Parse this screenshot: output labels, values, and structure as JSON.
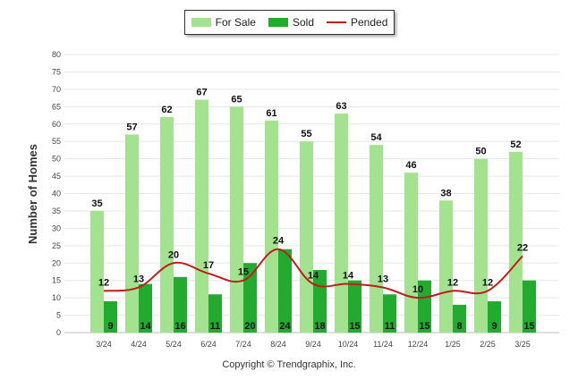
{
  "legend": {
    "for_sale": "For Sale",
    "sold": "Sold",
    "pended": "Pended"
  },
  "copyright": "Copyright © Trendgraphix, Inc.",
  "colors": {
    "for_sale": "#a3e28f",
    "sold": "#22ab2f",
    "pended": "#c21b1b",
    "grid": "#e6e6e6"
  },
  "chart_data": {
    "type": "bar",
    "categories": [
      "3/24",
      "4/24",
      "5/24",
      "6/24",
      "7/24",
      "8/24",
      "9/24",
      "10/24",
      "11/24",
      "12/24",
      "1/25",
      "2/25",
      "3/25"
    ],
    "series": [
      {
        "name": "For Sale",
        "type": "bar",
        "values": [
          35,
          57,
          62,
          67,
          65,
          61,
          55,
          63,
          54,
          46,
          38,
          50,
          52
        ]
      },
      {
        "name": "Sold",
        "type": "bar",
        "values": [
          9,
          14,
          16,
          11,
          20,
          24,
          18,
          15,
          11,
          15,
          8,
          9,
          15
        ]
      },
      {
        "name": "Pended",
        "type": "line",
        "values": [
          12,
          13,
          20,
          17,
          15,
          24,
          14,
          14,
          13,
          10,
          12,
          12,
          22
        ]
      }
    ],
    "xlabel": "",
    "ylabel": "Number of Homes",
    "ylim": [
      0,
      80
    ],
    "yticks": [
      0,
      5,
      10,
      15,
      20,
      25,
      30,
      35,
      40,
      45,
      50,
      55,
      60,
      65,
      70,
      75,
      80
    ],
    "grid": true,
    "legend_position": "top-center"
  }
}
